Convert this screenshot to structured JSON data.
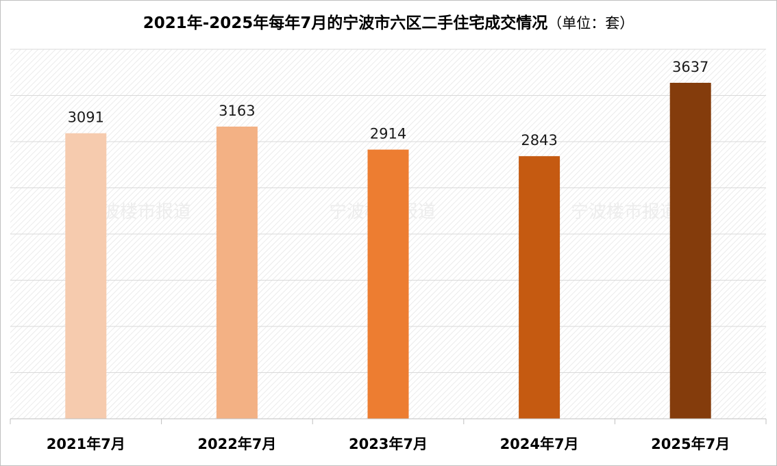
{
  "chart_data": {
    "type": "bar",
    "title": "2021年-2025年每年7月的宁波市六区二手住宅成交情况",
    "title_unit": "（单位：套）",
    "categories": [
      "2021年7月",
      "2022年7月",
      "2023年7月",
      "2024年7月",
      "2025年7月"
    ],
    "values": [
      3091,
      3163,
      2914,
      2843,
      3637
    ],
    "colors": [
      "#F6CBAE",
      "#F3B184",
      "#ED7D31",
      "#C55A11",
      "#843C0C"
    ],
    "ylim": [
      0,
      4000
    ],
    "grid": true,
    "xlabel": "",
    "ylabel": "",
    "watermark": "宁波楼市报道"
  }
}
